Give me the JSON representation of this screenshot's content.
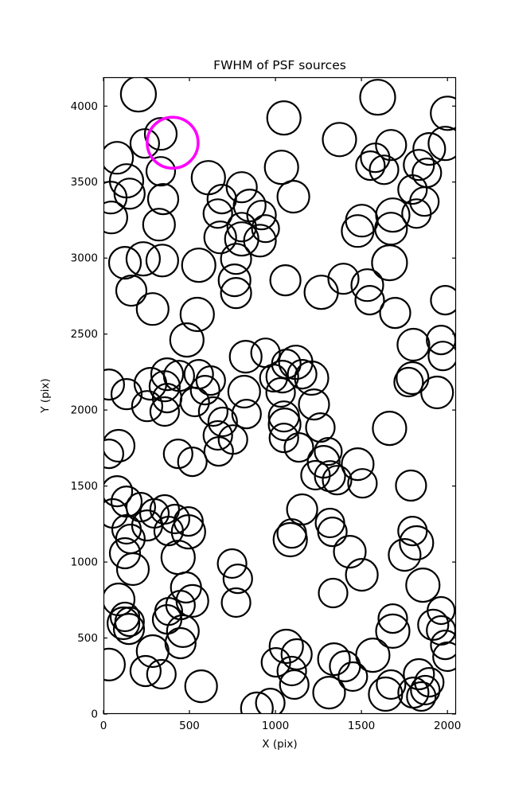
{
  "chart_data": {
    "type": "scatter",
    "title": "FWHM of PSF sources",
    "xlabel": "X (pix)",
    "ylabel": "Y (pix)",
    "xlim": [
      0,
      2050
    ],
    "ylim": [
      0,
      4190
    ],
    "xticks": [
      0,
      500,
      1000,
      1500,
      2000
    ],
    "yticks": [
      0,
      500,
      1000,
      1500,
      2000,
      2500,
      3000,
      3500,
      4000
    ],
    "grid": false,
    "legend": "none",
    "marker_style": {
      "fill": "none",
      "stroke": "#000000",
      "stroke_width": 2.2
    },
    "highlight_point": {
      "x": 402,
      "y": 3759,
      "r": 32,
      "color": "#FF00FF",
      "stroke_width": 3.6
    },
    "points_columns": [
      "x",
      "y",
      "marker_radius_px"
    ],
    "points": [
      [
        203,
        4079,
        22
      ],
      [
        1049,
        3922,
        21
      ],
      [
        1594,
        4058,
        22
      ],
      [
        2000,
        3953,
        21
      ],
      [
        1372,
        3780,
        21
      ],
      [
        333,
        3817,
        20
      ],
      [
        240,
        3754,
        18
      ],
      [
        79,
        3660,
        20
      ],
      [
        134,
        3508,
        21
      ],
      [
        42,
        3398,
        20
      ],
      [
        152,
        3424,
        19
      ],
      [
        333,
        3571,
        18
      ],
      [
        347,
        3388,
        19
      ],
      [
        46,
        3267,
        20
      ],
      [
        323,
        3220,
        20
      ],
      [
        610,
        3529,
        21
      ],
      [
        688,
        3388,
        18
      ],
      [
        804,
        3466,
        19
      ],
      [
        665,
        3293,
        18
      ],
      [
        850,
        3346,
        20
      ],
      [
        919,
        3283,
        18
      ],
      [
        942,
        3194,
        17
      ],
      [
        804,
        3204,
        18
      ],
      [
        1035,
        3597,
        21
      ],
      [
        1104,
        3404,
        20
      ],
      [
        1987,
        3754,
        21
      ],
      [
        1894,
        3718,
        20
      ],
      [
        1672,
        3744,
        19
      ],
      [
        1580,
        3660,
        18
      ],
      [
        1552,
        3608,
        18
      ],
      [
        1631,
        3581,
        18
      ],
      [
        1834,
        3613,
        19
      ],
      [
        1880,
        3561,
        18
      ],
      [
        1797,
        3451,
        18
      ],
      [
        1866,
        3372,
        18
      ],
      [
        1820,
        3293,
        18
      ],
      [
        1502,
        3246,
        20
      ],
      [
        1682,
        3283,
        21
      ],
      [
        125,
        2969,
        20
      ],
      [
        231,
        2995,
        21
      ],
      [
        342,
        2984,
        20
      ],
      [
        162,
        2786,
        19
      ],
      [
        286,
        2665,
        20
      ],
      [
        554,
        2953,
        21
      ],
      [
        545,
        2629,
        21
      ],
      [
        485,
        2461,
        21
      ],
      [
        679,
        3136,
        20
      ],
      [
        804,
        3126,
        21
      ],
      [
        910,
        3115,
        20
      ],
      [
        771,
        2995,
        19
      ],
      [
        762,
        2854,
        20
      ],
      [
        771,
        2770,
        19
      ],
      [
        1058,
        2854,
        19
      ],
      [
        1266,
        2775,
        21
      ],
      [
        1395,
        2864,
        19
      ],
      [
        1534,
        2822,
        20
      ],
      [
        1548,
        2723,
        18
      ],
      [
        1663,
        2969,
        22
      ],
      [
        1696,
        2639,
        19
      ],
      [
        1478,
        3178,
        20
      ],
      [
        1672,
        3194,
        20
      ],
      [
        1987,
        2723,
        18
      ],
      [
        1802,
        2430,
        20
      ],
      [
        1963,
        2461,
        18
      ],
      [
        1973,
        2356,
        18
      ],
      [
        1797,
        2210,
        20
      ],
      [
        370,
        2236,
        20
      ],
      [
        439,
        2225,
        19
      ],
      [
        554,
        2236,
        18
      ],
      [
        624,
        2194,
        18
      ],
      [
        827,
        2351,
        20
      ],
      [
        942,
        2377,
        18
      ],
      [
        1063,
        2304,
        18
      ],
      [
        1155,
        2236,
        18
      ],
      [
        989,
        2210,
        17
      ],
      [
        591,
        2131,
        18
      ],
      [
        638,
        1990,
        18
      ],
      [
        693,
        1922,
        18
      ],
      [
        753,
        1806,
        18
      ],
      [
        670,
        1728,
        18
      ],
      [
        818,
        2121,
        20
      ],
      [
        832,
        1974,
        18
      ],
      [
        1040,
        2220,
        20
      ],
      [
        1030,
        2116,
        18
      ],
      [
        1118,
        2314,
        21
      ],
      [
        1210,
        2210,
        21
      ],
      [
        1224,
        2037,
        19
      ],
      [
        1053,
        1906,
        20
      ],
      [
        1049,
        1817,
        18
      ],
      [
        1261,
        1885,
        18
      ],
      [
        1307,
        1728,
        17
      ],
      [
        1663,
        1880,
        21
      ],
      [
        1774,
        2184,
        18
      ],
      [
        1940,
        2116,
        20
      ],
      [
        1049,
        1958,
        19
      ],
      [
        32,
        2168,
        19
      ],
      [
        134,
        2105,
        19
      ],
      [
        273,
        2173,
        20
      ],
      [
        356,
        2157,
        19
      ],
      [
        370,
        2079,
        18
      ],
      [
        254,
        2026,
        19
      ],
      [
        356,
        1990,
        18
      ],
      [
        531,
        2053,
        18
      ],
      [
        88,
        1765,
        20
      ],
      [
        32,
        1712,
        18
      ],
      [
        434,
        1712,
        18
      ],
      [
        517,
        1660,
        18
      ],
      [
        665,
        1833,
        18
      ],
      [
        79,
        1466,
        19
      ],
      [
        134,
        1398,
        19
      ],
      [
        55,
        1320,
        18
      ],
      [
        217,
        1361,
        18
      ],
      [
        296,
        1320,
        18
      ],
      [
        356,
        1346,
        18
      ],
      [
        254,
        1241,
        19
      ],
      [
        416,
        1283,
        18
      ],
      [
        494,
        1267,
        18
      ],
      [
        134,
        1215,
        18
      ],
      [
        157,
        1152,
        18
      ],
      [
        379,
        1204,
        18
      ],
      [
        494,
        1199,
        21
      ],
      [
        125,
        1058,
        19
      ],
      [
        171,
        953,
        20
      ],
      [
        434,
        1031,
        21
      ],
      [
        480,
        833,
        19
      ],
      [
        88,
        754,
        20
      ],
      [
        125,
        639,
        18
      ],
      [
        152,
        607,
        18
      ],
      [
        379,
        675,
        17
      ],
      [
        448,
        717,
        18
      ],
      [
        517,
        744,
        20
      ],
      [
        748,
        990,
        18
      ],
      [
        781,
        890,
        18
      ],
      [
        771,
        733,
        18
      ],
      [
        1136,
        1754,
        18
      ],
      [
        1280,
        1660,
        20
      ],
      [
        1233,
        1571,
        18
      ],
      [
        1317,
        1565,
        19
      ],
      [
        1358,
        1539,
        18
      ],
      [
        1478,
        1644,
        20
      ],
      [
        1506,
        1518,
        18
      ],
      [
        1788,
        1503,
        19
      ],
      [
        1797,
        1204,
        18
      ],
      [
        1155,
        1346,
        19
      ],
      [
        1317,
        1257,
        18
      ],
      [
        1095,
        1188,
        18
      ],
      [
        1331,
        1199,
        18
      ],
      [
        1086,
        1147,
        21
      ],
      [
        1432,
        1068,
        20
      ],
      [
        1502,
        916,
        20
      ],
      [
        1335,
        796,
        18
      ],
      [
        1820,
        1126,
        21
      ],
      [
        1751,
        1047,
        20
      ],
      [
        1857,
        848,
        21
      ],
      [
        1963,
        681,
        17
      ],
      [
        1682,
        628,
        18
      ],
      [
        116,
        597,
        20
      ],
      [
        148,
        560,
        19
      ],
      [
        370,
        623,
        18
      ],
      [
        462,
        545,
        20
      ],
      [
        448,
        466,
        19
      ],
      [
        286,
        414,
        20
      ],
      [
        32,
        325,
        20
      ],
      [
        245,
        283,
        19
      ],
      [
        337,
        262,
        18
      ],
      [
        568,
        183,
        20
      ],
      [
        892,
        37,
        20
      ],
      [
        970,
        73,
        18
      ],
      [
        1063,
        445,
        21
      ],
      [
        1123,
        393,
        19
      ],
      [
        1003,
        340,
        18
      ],
      [
        1095,
        283,
        18
      ],
      [
        1109,
        194,
        18
      ],
      [
        1312,
        141,
        20
      ],
      [
        1340,
        361,
        20
      ],
      [
        1404,
        314,
        19
      ],
      [
        1450,
        246,
        18
      ],
      [
        1566,
        387,
        21
      ],
      [
        1682,
        545,
        21
      ],
      [
        1672,
        194,
        18
      ],
      [
        1640,
        131,
        21
      ],
      [
        1917,
        587,
        19
      ],
      [
        1963,
        550,
        18
      ],
      [
        1987,
        455,
        18
      ],
      [
        1834,
        262,
        19
      ],
      [
        1894,
        209,
        18
      ],
      [
        1802,
        141,
        19
      ],
      [
        1848,
        115,
        18
      ],
      [
        1871,
        157,
        18
      ],
      [
        2000,
        377,
        18
      ]
    ],
    "colors": {
      "marker": "#000000",
      "highlight": "#FF00FF",
      "background": "#FFFFFF",
      "spine": "#000000"
    }
  }
}
